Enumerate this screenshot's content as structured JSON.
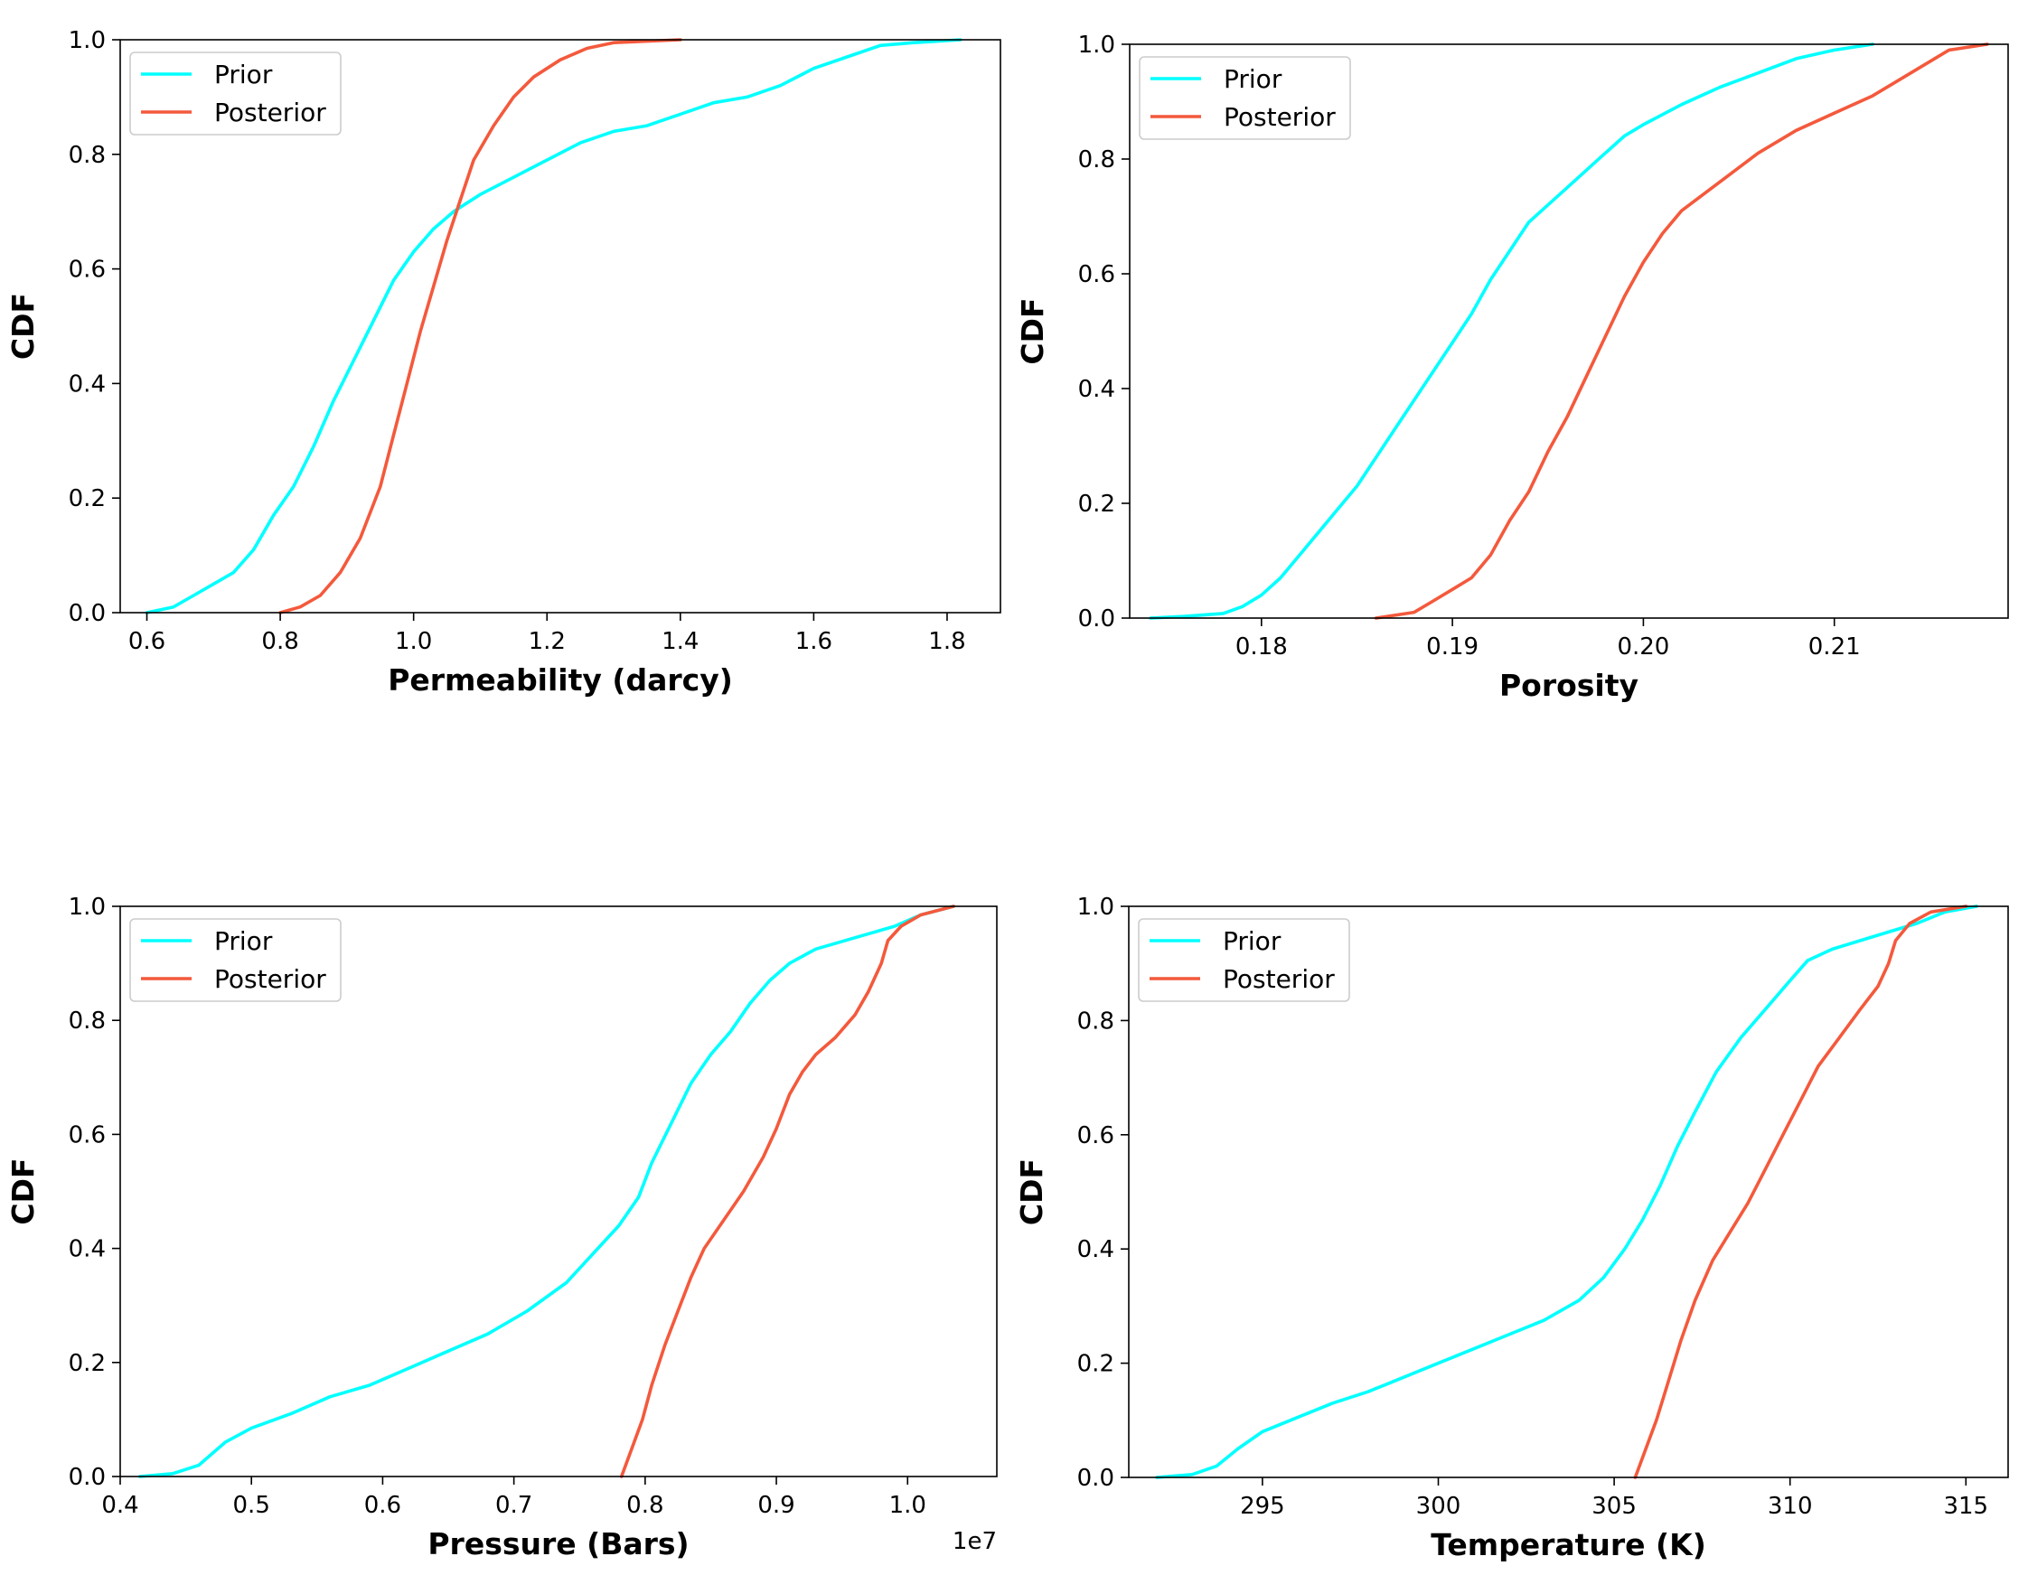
{
  "figure": {
    "colors": {
      "prior": "#00ffff",
      "posterior": "#f4593c",
      "axes": "#000000",
      "legend_border": "#cccccc"
    }
  },
  "chart_data": [
    {
      "type": "line",
      "xlabel": "Permeability (darcy)",
      "ylabel": "CDF",
      "xlim": [
        0.56,
        1.88
      ],
      "ylim": [
        0,
        1
      ],
      "xticks": [
        0.6,
        0.8,
        1.0,
        1.2,
        1.4,
        1.6,
        1.8
      ],
      "xtick_labels": [
        "0.6",
        "0.8",
        "1.0",
        "1.2",
        "1.4",
        "1.6",
        "1.8"
      ],
      "yticks": [
        0,
        0.2,
        0.4,
        0.6,
        0.8,
        1.0
      ],
      "ytick_labels": [
        "0.0",
        "0.2",
        "0.4",
        "0.6",
        "0.8",
        "1.0"
      ],
      "offset_label": "",
      "legend": {
        "position": "upper-left",
        "entries": [
          "Prior",
          "Posterior"
        ]
      },
      "series": [
        {
          "name": "Prior",
          "points": [
            [
              0.6,
              0.0
            ],
            [
              0.64,
              0.01
            ],
            [
              0.67,
              0.03
            ],
            [
              0.7,
              0.05
            ],
            [
              0.73,
              0.07
            ],
            [
              0.76,
              0.11
            ],
            [
              0.79,
              0.17
            ],
            [
              0.82,
              0.22
            ],
            [
              0.85,
              0.29
            ],
            [
              0.88,
              0.37
            ],
            [
              0.91,
              0.44
            ],
            [
              0.94,
              0.51
            ],
            [
              0.97,
              0.58
            ],
            [
              1.0,
              0.63
            ],
            [
              1.03,
              0.67
            ],
            [
              1.06,
              0.7
            ],
            [
              1.1,
              0.73
            ],
            [
              1.15,
              0.76
            ],
            [
              1.2,
              0.79
            ],
            [
              1.25,
              0.82
            ],
            [
              1.3,
              0.84
            ],
            [
              1.35,
              0.85
            ],
            [
              1.4,
              0.87
            ],
            [
              1.45,
              0.89
            ],
            [
              1.5,
              0.9
            ],
            [
              1.55,
              0.92
            ],
            [
              1.6,
              0.95
            ],
            [
              1.65,
              0.97
            ],
            [
              1.7,
              0.99
            ],
            [
              1.75,
              0.995
            ],
            [
              1.82,
              1.0
            ]
          ]
        },
        {
          "name": "Posterior",
          "points": [
            [
              0.8,
              0.0
            ],
            [
              0.83,
              0.01
            ],
            [
              0.86,
              0.03
            ],
            [
              0.89,
              0.07
            ],
            [
              0.92,
              0.13
            ],
            [
              0.95,
              0.22
            ],
            [
              0.97,
              0.31
            ],
            [
              0.99,
              0.4
            ],
            [
              1.01,
              0.49
            ],
            [
              1.03,
              0.57
            ],
            [
              1.05,
              0.65
            ],
            [
              1.07,
              0.72
            ],
            [
              1.09,
              0.79
            ],
            [
              1.12,
              0.85
            ],
            [
              1.15,
              0.9
            ],
            [
              1.18,
              0.935
            ],
            [
              1.22,
              0.965
            ],
            [
              1.26,
              0.985
            ],
            [
              1.3,
              0.995
            ],
            [
              1.4,
              1.0
            ]
          ]
        }
      ]
    },
    {
      "type": "line",
      "xlabel": "Porosity",
      "ylabel": "CDF",
      "xlim": [
        0.1731,
        0.2191
      ],
      "ylim": [
        0,
        1
      ],
      "xticks": [
        0.18,
        0.19,
        0.2,
        0.21
      ],
      "xtick_labels": [
        "0.18",
        "0.19",
        "0.20",
        "0.21"
      ],
      "yticks": [
        0,
        0.2,
        0.4,
        0.6,
        0.8,
        1.0
      ],
      "ytick_labels": [
        "0.0",
        "0.2",
        "0.4",
        "0.6",
        "0.8",
        "1.0"
      ],
      "offset_label": "",
      "legend": {
        "position": "upper-left",
        "entries": [
          "Prior",
          "Posterior"
        ]
      },
      "series": [
        {
          "name": "Prior",
          "points": [
            [
              0.1742,
              0.0
            ],
            [
              0.176,
              0.003
            ],
            [
              0.178,
              0.008
            ],
            [
              0.179,
              0.02
            ],
            [
              0.18,
              0.04
            ],
            [
              0.181,
              0.07
            ],
            [
              0.182,
              0.11
            ],
            [
              0.183,
              0.15
            ],
            [
              0.184,
              0.19
            ],
            [
              0.185,
              0.23
            ],
            [
              0.186,
              0.28
            ],
            [
              0.187,
              0.33
            ],
            [
              0.188,
              0.38
            ],
            [
              0.189,
              0.43
            ],
            [
              0.19,
              0.48
            ],
            [
              0.191,
              0.53
            ],
            [
              0.192,
              0.59
            ],
            [
              0.193,
              0.64
            ],
            [
              0.194,
              0.69
            ],
            [
              0.195,
              0.72
            ],
            [
              0.196,
              0.75
            ],
            [
              0.197,
              0.78
            ],
            [
              0.198,
              0.81
            ],
            [
              0.199,
              0.84
            ],
            [
              0.2,
              0.86
            ],
            [
              0.202,
              0.895
            ],
            [
              0.204,
              0.925
            ],
            [
              0.206,
              0.95
            ],
            [
              0.208,
              0.975
            ],
            [
              0.21,
              0.99
            ],
            [
              0.212,
              1.0
            ]
          ]
        },
        {
          "name": "Posterior",
          "points": [
            [
              0.186,
              0.0
            ],
            [
              0.188,
              0.01
            ],
            [
              0.189,
              0.03
            ],
            [
              0.19,
              0.05
            ],
            [
              0.191,
              0.07
            ],
            [
              0.192,
              0.11
            ],
            [
              0.193,
              0.17
            ],
            [
              0.194,
              0.22
            ],
            [
              0.195,
              0.29
            ],
            [
              0.196,
              0.35
            ],
            [
              0.197,
              0.42
            ],
            [
              0.198,
              0.49
            ],
            [
              0.199,
              0.56
            ],
            [
              0.2,
              0.62
            ],
            [
              0.201,
              0.67
            ],
            [
              0.202,
              0.71
            ],
            [
              0.204,
              0.76
            ],
            [
              0.206,
              0.81
            ],
            [
              0.208,
              0.85
            ],
            [
              0.21,
              0.88
            ],
            [
              0.212,
              0.91
            ],
            [
              0.214,
              0.95
            ],
            [
              0.216,
              0.99
            ],
            [
              0.218,
              1.0
            ]
          ]
        }
      ]
    },
    {
      "type": "line",
      "xlabel": "Pressure (Bars)",
      "ylabel": "CDF",
      "xlim": [
        4000000.0,
        10680000.0
      ],
      "ylim": [
        0,
        1
      ],
      "xticks": [
        4000000.0,
        5000000.0,
        6000000.0,
        7000000.0,
        8000000.0,
        9000000.0,
        10000000.0
      ],
      "xtick_labels": [
        "0.4",
        "0.5",
        "0.6",
        "0.7",
        "0.8",
        "0.9",
        "1.0"
      ],
      "yticks": [
        0,
        0.2,
        0.4,
        0.6,
        0.8,
        1.0
      ],
      "ytick_labels": [
        "0.0",
        "0.2",
        "0.4",
        "0.6",
        "0.8",
        "1.0"
      ],
      "offset_label": "1e7",
      "legend": {
        "position": "upper-left",
        "entries": [
          "Prior",
          "Posterior"
        ]
      },
      "series": [
        {
          "name": "Prior",
          "points": [
            [
              4150000.0,
              0.0
            ],
            [
              4400000.0,
              0.005
            ],
            [
              4600000.0,
              0.02
            ],
            [
              4800000.0,
              0.06
            ],
            [
              5000000.0,
              0.085
            ],
            [
              5300000.0,
              0.11
            ],
            [
              5600000.0,
              0.14
            ],
            [
              5900000.0,
              0.16
            ],
            [
              6200000.0,
              0.19
            ],
            [
              6500000.0,
              0.22
            ],
            [
              6800000.0,
              0.25
            ],
            [
              7100000.0,
              0.29
            ],
            [
              7400000.0,
              0.34
            ],
            [
              7600000.0,
              0.39
            ],
            [
              7800000.0,
              0.44
            ],
            [
              7950000.0,
              0.49
            ],
            [
              8050000.0,
              0.55
            ],
            [
              8200000.0,
              0.62
            ],
            [
              8350000.0,
              0.69
            ],
            [
              8500000.0,
              0.74
            ],
            [
              8650000.0,
              0.78
            ],
            [
              8800000.0,
              0.83
            ],
            [
              8950000.0,
              0.87
            ],
            [
              9100000.0,
              0.9
            ],
            [
              9300000.0,
              0.925
            ],
            [
              9600000.0,
              0.945
            ],
            [
              9900000.0,
              0.965
            ],
            [
              10100000.0,
              0.985
            ],
            [
              10350000.0,
              1.0
            ]
          ]
        },
        {
          "name": "Posterior",
          "points": [
            [
              7820000.0,
              0.0
            ],
            [
              7900000.0,
              0.05
            ],
            [
              7980000.0,
              0.1
            ],
            [
              8050000.0,
              0.16
            ],
            [
              8150000.0,
              0.23
            ],
            [
              8250000.0,
              0.29
            ],
            [
              8350000.0,
              0.35
            ],
            [
              8450000.0,
              0.4
            ],
            [
              8600000.0,
              0.45
            ],
            [
              8750000.0,
              0.5
            ],
            [
              8900000.0,
              0.56
            ],
            [
              9000000.0,
              0.61
            ],
            [
              9100000.0,
              0.67
            ],
            [
              9200000.0,
              0.71
            ],
            [
              9300000.0,
              0.74
            ],
            [
              9450000.0,
              0.77
            ],
            [
              9600000.0,
              0.81
            ],
            [
              9700000.0,
              0.85
            ],
            [
              9800000.0,
              0.9
            ],
            [
              9850000.0,
              0.94
            ],
            [
              9950000.0,
              0.965
            ],
            [
              10100000.0,
              0.985
            ],
            [
              10350000.0,
              1.0
            ]
          ]
        }
      ]
    },
    {
      "type": "line",
      "xlabel": "Temperature (K)",
      "ylabel": "CDF",
      "xlim": [
        291.2,
        316.2
      ],
      "ylim": [
        0,
        1
      ],
      "xticks": [
        295,
        300,
        305,
        310,
        315
      ],
      "xtick_labels": [
        "295",
        "300",
        "305",
        "310",
        "315"
      ],
      "yticks": [
        0,
        0.2,
        0.4,
        0.6,
        0.8,
        1.0
      ],
      "ytick_labels": [
        "0.0",
        "0.2",
        "0.4",
        "0.6",
        "0.8",
        "1.0"
      ],
      "offset_label": "",
      "legend": {
        "position": "upper-left",
        "entries": [
          "Prior",
          "Posterior"
        ]
      },
      "series": [
        {
          "name": "Prior",
          "points": [
            [
              292.0,
              0.0
            ],
            [
              293.0,
              0.005
            ],
            [
              293.7,
              0.02
            ],
            [
              294.3,
              0.05
            ],
            [
              295.0,
              0.08
            ],
            [
              296.0,
              0.105
            ],
            [
              297.0,
              0.13
            ],
            [
              298.0,
              0.15
            ],
            [
              299.0,
              0.175
            ],
            [
              300.0,
              0.2
            ],
            [
              301.0,
              0.225
            ],
            [
              302.0,
              0.25
            ],
            [
              303.0,
              0.275
            ],
            [
              304.0,
              0.31
            ],
            [
              304.7,
              0.35
            ],
            [
              305.3,
              0.4
            ],
            [
              305.8,
              0.45
            ],
            [
              306.3,
              0.51
            ],
            [
              306.8,
              0.58
            ],
            [
              307.3,
              0.64
            ],
            [
              307.9,
              0.71
            ],
            [
              308.6,
              0.77
            ],
            [
              309.3,
              0.82
            ],
            [
              310.0,
              0.87
            ],
            [
              310.5,
              0.905
            ],
            [
              311.2,
              0.925
            ],
            [
              312.0,
              0.94
            ],
            [
              312.8,
              0.955
            ],
            [
              313.6,
              0.97
            ],
            [
              314.4,
              0.99
            ],
            [
              315.3,
              1.0
            ]
          ]
        },
        {
          "name": "Posterior",
          "points": [
            [
              305.6,
              0.0
            ],
            [
              305.9,
              0.05
            ],
            [
              306.2,
              0.1
            ],
            [
              306.5,
              0.16
            ],
            [
              306.9,
              0.24
            ],
            [
              307.3,
              0.31
            ],
            [
              307.8,
              0.38
            ],
            [
              308.3,
              0.43
            ],
            [
              308.8,
              0.48
            ],
            [
              309.3,
              0.54
            ],
            [
              309.8,
              0.6
            ],
            [
              310.3,
              0.66
            ],
            [
              310.8,
              0.72
            ],
            [
              311.4,
              0.77
            ],
            [
              312.0,
              0.82
            ],
            [
              312.5,
              0.86
            ],
            [
              312.8,
              0.9
            ],
            [
              313.0,
              0.94
            ],
            [
              313.4,
              0.97
            ],
            [
              314.0,
              0.99
            ],
            [
              315.0,
              1.0
            ]
          ]
        }
      ]
    }
  ]
}
